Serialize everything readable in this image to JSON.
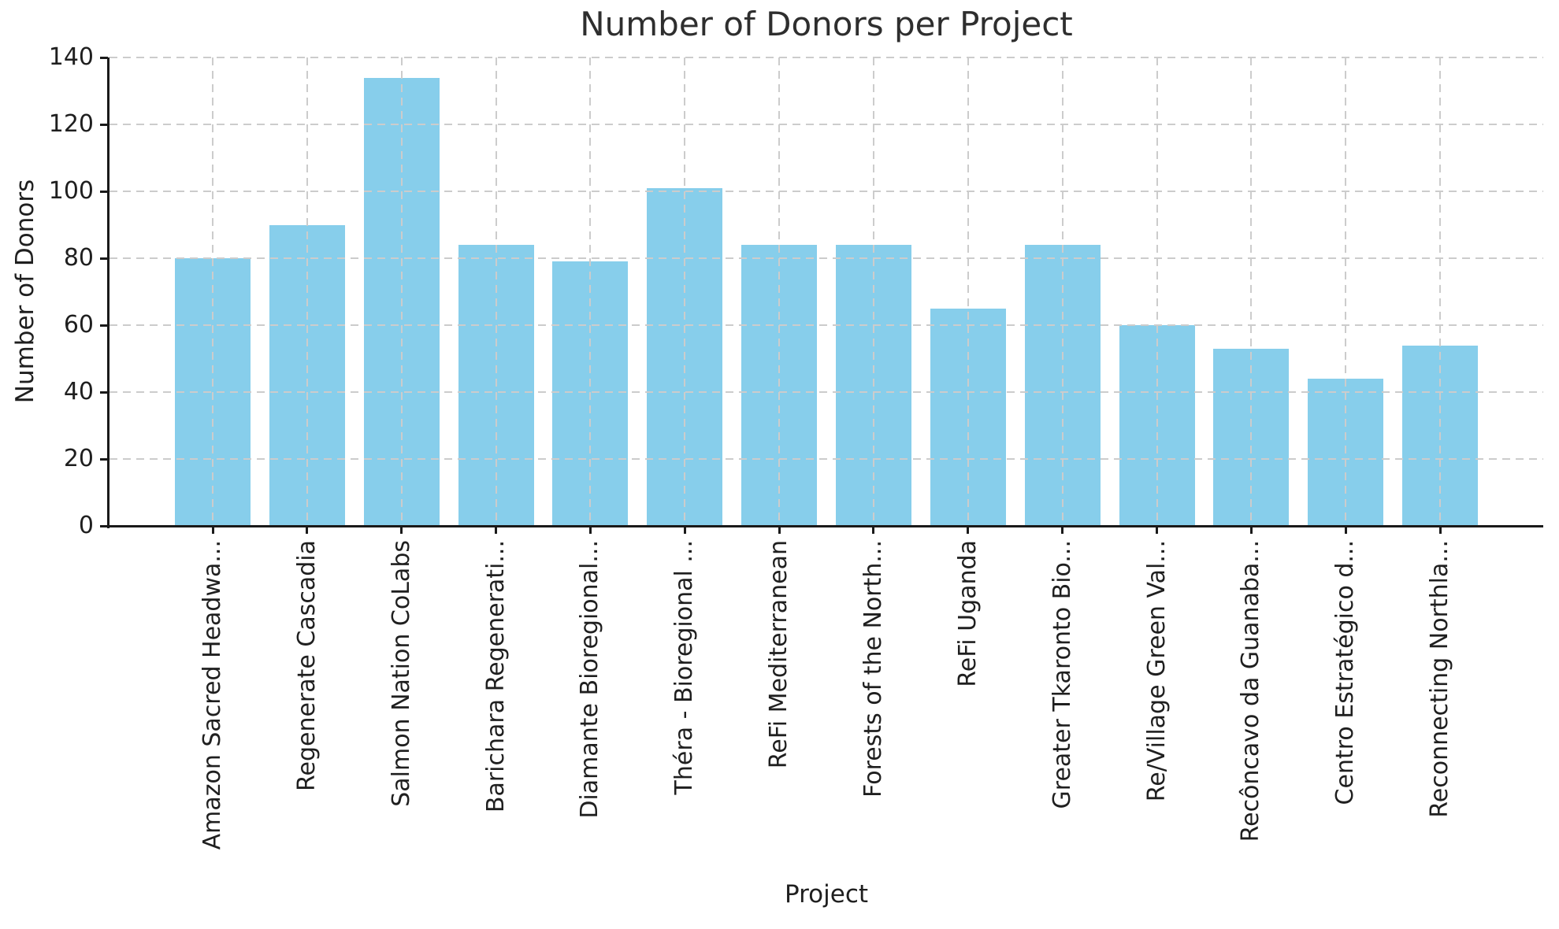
{
  "figure": {
    "background": "#ffffff",
    "text_color": "#1f1f1f",
    "title_color": "#2e2e2e"
  },
  "chart_data": {
    "type": "bar",
    "title": "Number of Donors per Project",
    "xlabel": "Project",
    "ylabel": "Number of Donors",
    "categories": [
      "Amazon Sacred Headwa...",
      "Regenerate Cascadia",
      "Salmon Nation CoLabs",
      "Barichara Regenerati...",
      "Diamante Bioregional...",
      "Théra - Bioregional ...",
      "ReFi Mediterranean",
      "Forests of the North...",
      "ReFi Uganda",
      "Greater Tkaronto Bio...",
      "Re/Village Green Val...",
      "Recôncavo da Guanaba...",
      "Centro Estratégico d...",
      "Reconnecting Northla..."
    ],
    "values": [
      80,
      90,
      134,
      84,
      79,
      101,
      84,
      84,
      65,
      84,
      60,
      53,
      44,
      54
    ],
    "ylim": [
      0,
      140
    ],
    "yticks": [
      0,
      20,
      40,
      60,
      80,
      100,
      120,
      140
    ],
    "bar_color": "#87CEEB",
    "grid_color": "#cccccc",
    "grid_style": "dashed",
    "legend": null
  }
}
